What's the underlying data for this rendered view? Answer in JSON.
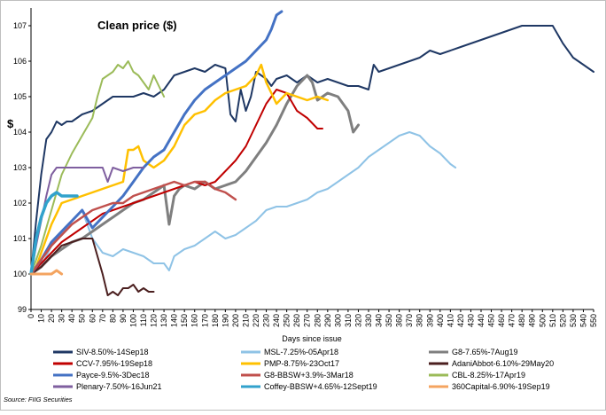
{
  "chart_data": {
    "type": "line",
    "title": "Clean price ($)",
    "xlabel": "Days since issue",
    "ylabel": "$",
    "xlim": [
      0,
      550
    ],
    "ylim": [
      99,
      107.5
    ],
    "xticks": [
      0,
      10,
      20,
      30,
      40,
      50,
      60,
      70,
      80,
      90,
      100,
      110,
      120,
      130,
      140,
      150,
      160,
      170,
      180,
      190,
      200,
      210,
      220,
      230,
      240,
      250,
      260,
      270,
      280,
      290,
      300,
      310,
      320,
      330,
      340,
      350,
      360,
      370,
      380,
      390,
      400,
      410,
      420,
      430,
      440,
      450,
      460,
      470,
      480,
      490,
      500,
      510,
      520,
      530,
      540,
      550
    ],
    "yticks": [
      99,
      100,
      101,
      102,
      103,
      104,
      105,
      106,
      107
    ],
    "grid": false,
    "source": "Source: FIIG Securities",
    "series": [
      {
        "name": "SIV-8.50%-14Sep18",
        "color": "#1f3864",
        "width": 2,
        "x": [
          0,
          5,
          10,
          15,
          20,
          25,
          30,
          35,
          40,
          50,
          60,
          70,
          80,
          90,
          100,
          110,
          120,
          130,
          140,
          150,
          160,
          170,
          180,
          190,
          195,
          200,
          205,
          210,
          215,
          220,
          225,
          230,
          235,
          240,
          250,
          260,
          270,
          280,
          290,
          300,
          310,
          320,
          330,
          335,
          340,
          350,
          360,
          370,
          380,
          390,
          400,
          420,
          440,
          460,
          480,
          490,
          500,
          510,
          520,
          530,
          540,
          550
        ],
        "y": [
          100.0,
          101.5,
          102.8,
          103.8,
          104.0,
          104.3,
          104.2,
          104.3,
          104.3,
          104.5,
          104.6,
          104.8,
          105.0,
          105.0,
          105.0,
          105.1,
          105.0,
          105.2,
          105.6,
          105.7,
          105.8,
          105.7,
          105.9,
          105.8,
          104.5,
          104.3,
          105.2,
          104.6,
          105.0,
          105.7,
          105.6,
          105.5,
          105.3,
          105.5,
          105.6,
          105.4,
          105.6,
          105.4,
          105.5,
          105.4,
          105.3,
          105.3,
          105.2,
          105.9,
          105.7,
          105.8,
          105.9,
          106.0,
          106.1,
          106.3,
          106.2,
          106.4,
          106.6,
          106.8,
          107.0,
          107.0,
          107.0,
          107.0,
          106.5,
          106.1,
          105.9,
          105.7
        ]
      },
      {
        "name": "MSL-7.25%-05Apr18",
        "color": "#8fc3e6",
        "width": 2,
        "x": [
          0,
          10,
          20,
          30,
          40,
          50,
          60,
          70,
          80,
          90,
          100,
          110,
          120,
          130,
          135,
          140,
          150,
          160,
          170,
          180,
          190,
          200,
          210,
          220,
          230,
          240,
          250,
          260,
          270,
          280,
          290,
          300,
          310,
          320,
          330,
          340,
          350,
          360,
          370,
          380,
          390,
          400,
          410,
          415
        ],
        "y": [
          100.0,
          100.2,
          100.8,
          101.2,
          101.5,
          101.8,
          101.0,
          100.6,
          100.5,
          100.7,
          100.6,
          100.5,
          100.3,
          100.3,
          100.1,
          100.5,
          100.7,
          100.8,
          101.0,
          101.2,
          101.0,
          101.1,
          101.3,
          101.5,
          101.8,
          101.9,
          101.9,
          102.0,
          102.1,
          102.3,
          102.4,
          102.6,
          102.8,
          103.0,
          103.3,
          103.5,
          103.7,
          103.9,
          104.0,
          103.9,
          103.6,
          103.4,
          103.1,
          103.0
        ]
      },
      {
        "name": "G8-7.65%-7Aug19",
        "color": "#7f7f7f",
        "width": 3,
        "x": [
          0,
          10,
          20,
          30,
          40,
          50,
          60,
          70,
          80,
          90,
          100,
          110,
          120,
          130,
          135,
          140,
          145,
          150,
          160,
          170,
          180,
          190,
          200,
          210,
          220,
          230,
          240,
          250,
          260,
          270,
          275,
          280,
          290,
          300,
          310,
          315,
          320
        ],
        "y": [
          100.0,
          100.2,
          100.5,
          100.7,
          100.9,
          101.0,
          101.2,
          101.4,
          101.6,
          101.8,
          102.0,
          102.1,
          102.3,
          102.5,
          101.4,
          102.2,
          102.4,
          102.5,
          102.4,
          102.6,
          102.4,
          102.5,
          102.6,
          102.9,
          103.3,
          103.7,
          104.2,
          104.8,
          105.3,
          105.6,
          105.4,
          104.9,
          105.1,
          105.0,
          104.6,
          104.0,
          104.2
        ]
      },
      {
        "name": "CCV-7.95%-19Sep18",
        "color": "#c00000",
        "width": 2,
        "x": [
          0,
          10,
          20,
          30,
          40,
          50,
          60,
          70,
          80,
          90,
          100,
          110,
          120,
          130,
          140,
          150,
          160,
          170,
          180,
          190,
          200,
          210,
          220,
          230,
          240,
          250,
          260,
          270,
          280,
          285
        ],
        "y": [
          100.0,
          100.3,
          100.6,
          100.9,
          101.1,
          101.3,
          101.5,
          101.7,
          101.8,
          101.9,
          102.0,
          102.1,
          102.2,
          102.3,
          102.4,
          102.5,
          102.6,
          102.5,
          102.6,
          102.9,
          103.2,
          103.6,
          104.2,
          104.8,
          105.2,
          105.1,
          104.6,
          104.4,
          104.1,
          104.1
        ]
      },
      {
        "name": "PMP-8.75%-23Oct17",
        "color": "#ffc000",
        "width": 2.5,
        "x": [
          0,
          5,
          10,
          15,
          20,
          25,
          30,
          40,
          50,
          60,
          70,
          80,
          90,
          95,
          100,
          105,
          110,
          120,
          130,
          140,
          150,
          160,
          170,
          180,
          190,
          200,
          210,
          220,
          225,
          230,
          235,
          240,
          250,
          260,
          270,
          280,
          290
        ],
        "y": [
          100.0,
          100.2,
          100.6,
          101.0,
          101.4,
          101.7,
          102.0,
          102.1,
          102.2,
          102.3,
          102.4,
          102.5,
          102.6,
          103.5,
          103.5,
          103.6,
          103.2,
          103.0,
          103.2,
          103.6,
          104.2,
          104.5,
          104.6,
          104.9,
          105.1,
          105.2,
          105.3,
          105.6,
          105.9,
          105.4,
          105.1,
          104.8,
          105.1,
          105.0,
          104.9,
          105.0,
          104.9
        ]
      },
      {
        "name": "AdaniAbbot-6.10%-29May20",
        "color": "#4b1f1f",
        "width": 2,
        "x": [
          0,
          10,
          20,
          30,
          40,
          50,
          60,
          70,
          75,
          80,
          85,
          90,
          95,
          100,
          105,
          110,
          115,
          120
        ],
        "y": [
          100.0,
          100.2,
          100.5,
          100.8,
          100.9,
          101.0,
          101.0,
          100.0,
          99.4,
          99.5,
          99.4,
          99.6,
          99.6,
          99.7,
          99.5,
          99.6,
          99.5,
          99.5
        ]
      },
      {
        "name": "Payce-9.5%-3Dec18",
        "color": "#4472c4",
        "width": 3,
        "x": [
          0,
          10,
          20,
          30,
          40,
          50,
          60,
          70,
          80,
          90,
          100,
          110,
          120,
          130,
          140,
          150,
          160,
          170,
          180,
          190,
          200,
          210,
          220,
          230,
          235,
          240,
          245
        ],
        "y": [
          100.0,
          100.4,
          100.9,
          101.2,
          101.5,
          101.8,
          101.3,
          101.6,
          101.9,
          102.2,
          102.6,
          103.0,
          103.3,
          103.5,
          104.0,
          104.5,
          104.9,
          105.2,
          105.4,
          105.6,
          105.8,
          106.0,
          106.3,
          106.6,
          106.9,
          107.3,
          107.4
        ]
      },
      {
        "name": "G8-BBSW+3.9%-3Mar18",
        "color": "#c0504d",
        "width": 2.5,
        "x": [
          0,
          10,
          20,
          30,
          40,
          50,
          60,
          70,
          80,
          90,
          100,
          110,
          120,
          130,
          140,
          150,
          160,
          170,
          180,
          190,
          200
        ],
        "y": [
          100.0,
          100.4,
          100.8,
          101.1,
          101.4,
          101.6,
          101.8,
          101.9,
          102.0,
          102.0,
          102.2,
          102.3,
          102.4,
          102.5,
          102.6,
          102.5,
          102.6,
          102.6,
          102.4,
          102.3,
          102.1
        ]
      },
      {
        "name": "CBL-8.25%-17Apr19",
        "color": "#9bbb59",
        "width": 2,
        "x": [
          0,
          10,
          20,
          30,
          40,
          50,
          60,
          65,
          70,
          75,
          80,
          85,
          90,
          95,
          100,
          105,
          110,
          115,
          120,
          125,
          130
        ],
        "y": [
          100.0,
          100.8,
          101.8,
          102.8,
          103.4,
          103.9,
          104.4,
          105.0,
          105.5,
          105.6,
          105.7,
          105.9,
          105.8,
          106.0,
          105.7,
          105.6,
          105.4,
          105.2,
          105.6,
          105.3,
          105.0
        ]
      },
      {
        "name": "Plenary-7.50%-16Jun21",
        "color": "#7f5f9f",
        "width": 2,
        "x": [
          0,
          5,
          10,
          15,
          20,
          25,
          30,
          40,
          50,
          60,
          70,
          75,
          80,
          90,
          100,
          110
        ],
        "y": [
          100.0,
          100.8,
          101.5,
          102.2,
          102.8,
          103.0,
          103.0,
          103.0,
          103.0,
          103.0,
          103.0,
          102.6,
          103.0,
          102.9,
          103.0,
          103.0
        ]
      },
      {
        "name": "Coffey-BBSW+4.65%-12Sept19",
        "color": "#31a2cc",
        "width": 3.5,
        "x": [
          0,
          5,
          10,
          15,
          20,
          25,
          30,
          35,
          40,
          45
        ],
        "y": [
          100.0,
          101.0,
          101.6,
          102.0,
          102.2,
          102.3,
          102.2,
          102.2,
          102.2,
          102.2
        ]
      },
      {
        "name": "360Capital-6.90%-19Sep19",
        "color": "#f4a460",
        "width": 3,
        "x": [
          0,
          5,
          10,
          15,
          20,
          25,
          30
        ],
        "y": [
          100.0,
          100.0,
          100.0,
          100.0,
          100.0,
          100.1,
          100.0
        ]
      }
    ]
  }
}
